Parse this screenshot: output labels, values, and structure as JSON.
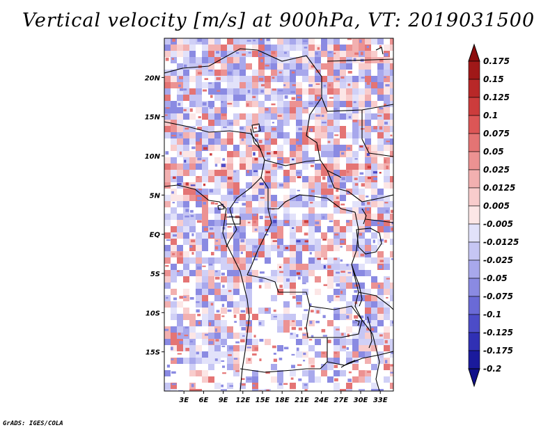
{
  "title": "Vertical velocity [m/s] at 900hPa, VT: 2019031500",
  "credit": "GrADS: IGES/COLA",
  "map": {
    "lon_range": [
      0,
      35
    ],
    "lat_range": [
      -20,
      25
    ],
    "lat_ticks": [
      {
        "value": 20,
        "label": "20N"
      },
      {
        "value": 15,
        "label": "15N"
      },
      {
        "value": 10,
        "label": "10N"
      },
      {
        "value": 5,
        "label": "5N"
      },
      {
        "value": 0,
        "label": "EQ"
      },
      {
        "value": -5,
        "label": "5S"
      },
      {
        "value": -10,
        "label": "10S"
      },
      {
        "value": -15,
        "label": "15S"
      }
    ],
    "lon_ticks": [
      {
        "value": 3,
        "label": "3E"
      },
      {
        "value": 6,
        "label": "6E"
      },
      {
        "value": 9,
        "label": "9E"
      },
      {
        "value": 12,
        "label": "12E"
      },
      {
        "value": 15,
        "label": "15E"
      },
      {
        "value": 18,
        "label": "18E"
      },
      {
        "value": 21,
        "label": "21E"
      },
      {
        "value": 24,
        "label": "24E"
      },
      {
        "value": 27,
        "label": "27E"
      },
      {
        "value": 30,
        "label": "30E"
      },
      {
        "value": 33,
        "label": "33E"
      }
    ]
  },
  "colorbar": {
    "levels": [
      {
        "label": "0.175",
        "color": "#a01818"
      },
      {
        "label": "0.15",
        "color": "#b82828"
      },
      {
        "label": "0.125",
        "color": "#cc3c3c"
      },
      {
        "label": "0.1",
        "color": "#dc5656"
      },
      {
        "label": "0.075",
        "color": "#e47474"
      },
      {
        "label": "0.05",
        "color": "#ec9292"
      },
      {
        "label": "0.025",
        "color": "#f2b0b0"
      },
      {
        "label": "0.0125",
        "color": "#f8cccc"
      },
      {
        "label": "0.005",
        "color": "#fce6e6"
      },
      {
        "label": "-0.005",
        "color": "#ffffff"
      },
      {
        "label": "-0.0125",
        "color": "#e2e2fa"
      },
      {
        "label": "-0.025",
        "color": "#c6c6f4"
      },
      {
        "label": "-0.05",
        "color": "#a8a8ec"
      },
      {
        "label": "-0.075",
        "color": "#8a8ae2"
      },
      {
        "label": "-0.1",
        "color": "#6a6ad6"
      },
      {
        "label": "-0.125",
        "color": "#4c4cc8"
      },
      {
        "label": "-0.175",
        "color": "#3030b4"
      },
      {
        "label": "-0.2",
        "color": "#1a1a9c"
      }
    ],
    "top_arrow_color": "#8c0c0c",
    "bottom_arrow_color": "#10108a"
  }
}
